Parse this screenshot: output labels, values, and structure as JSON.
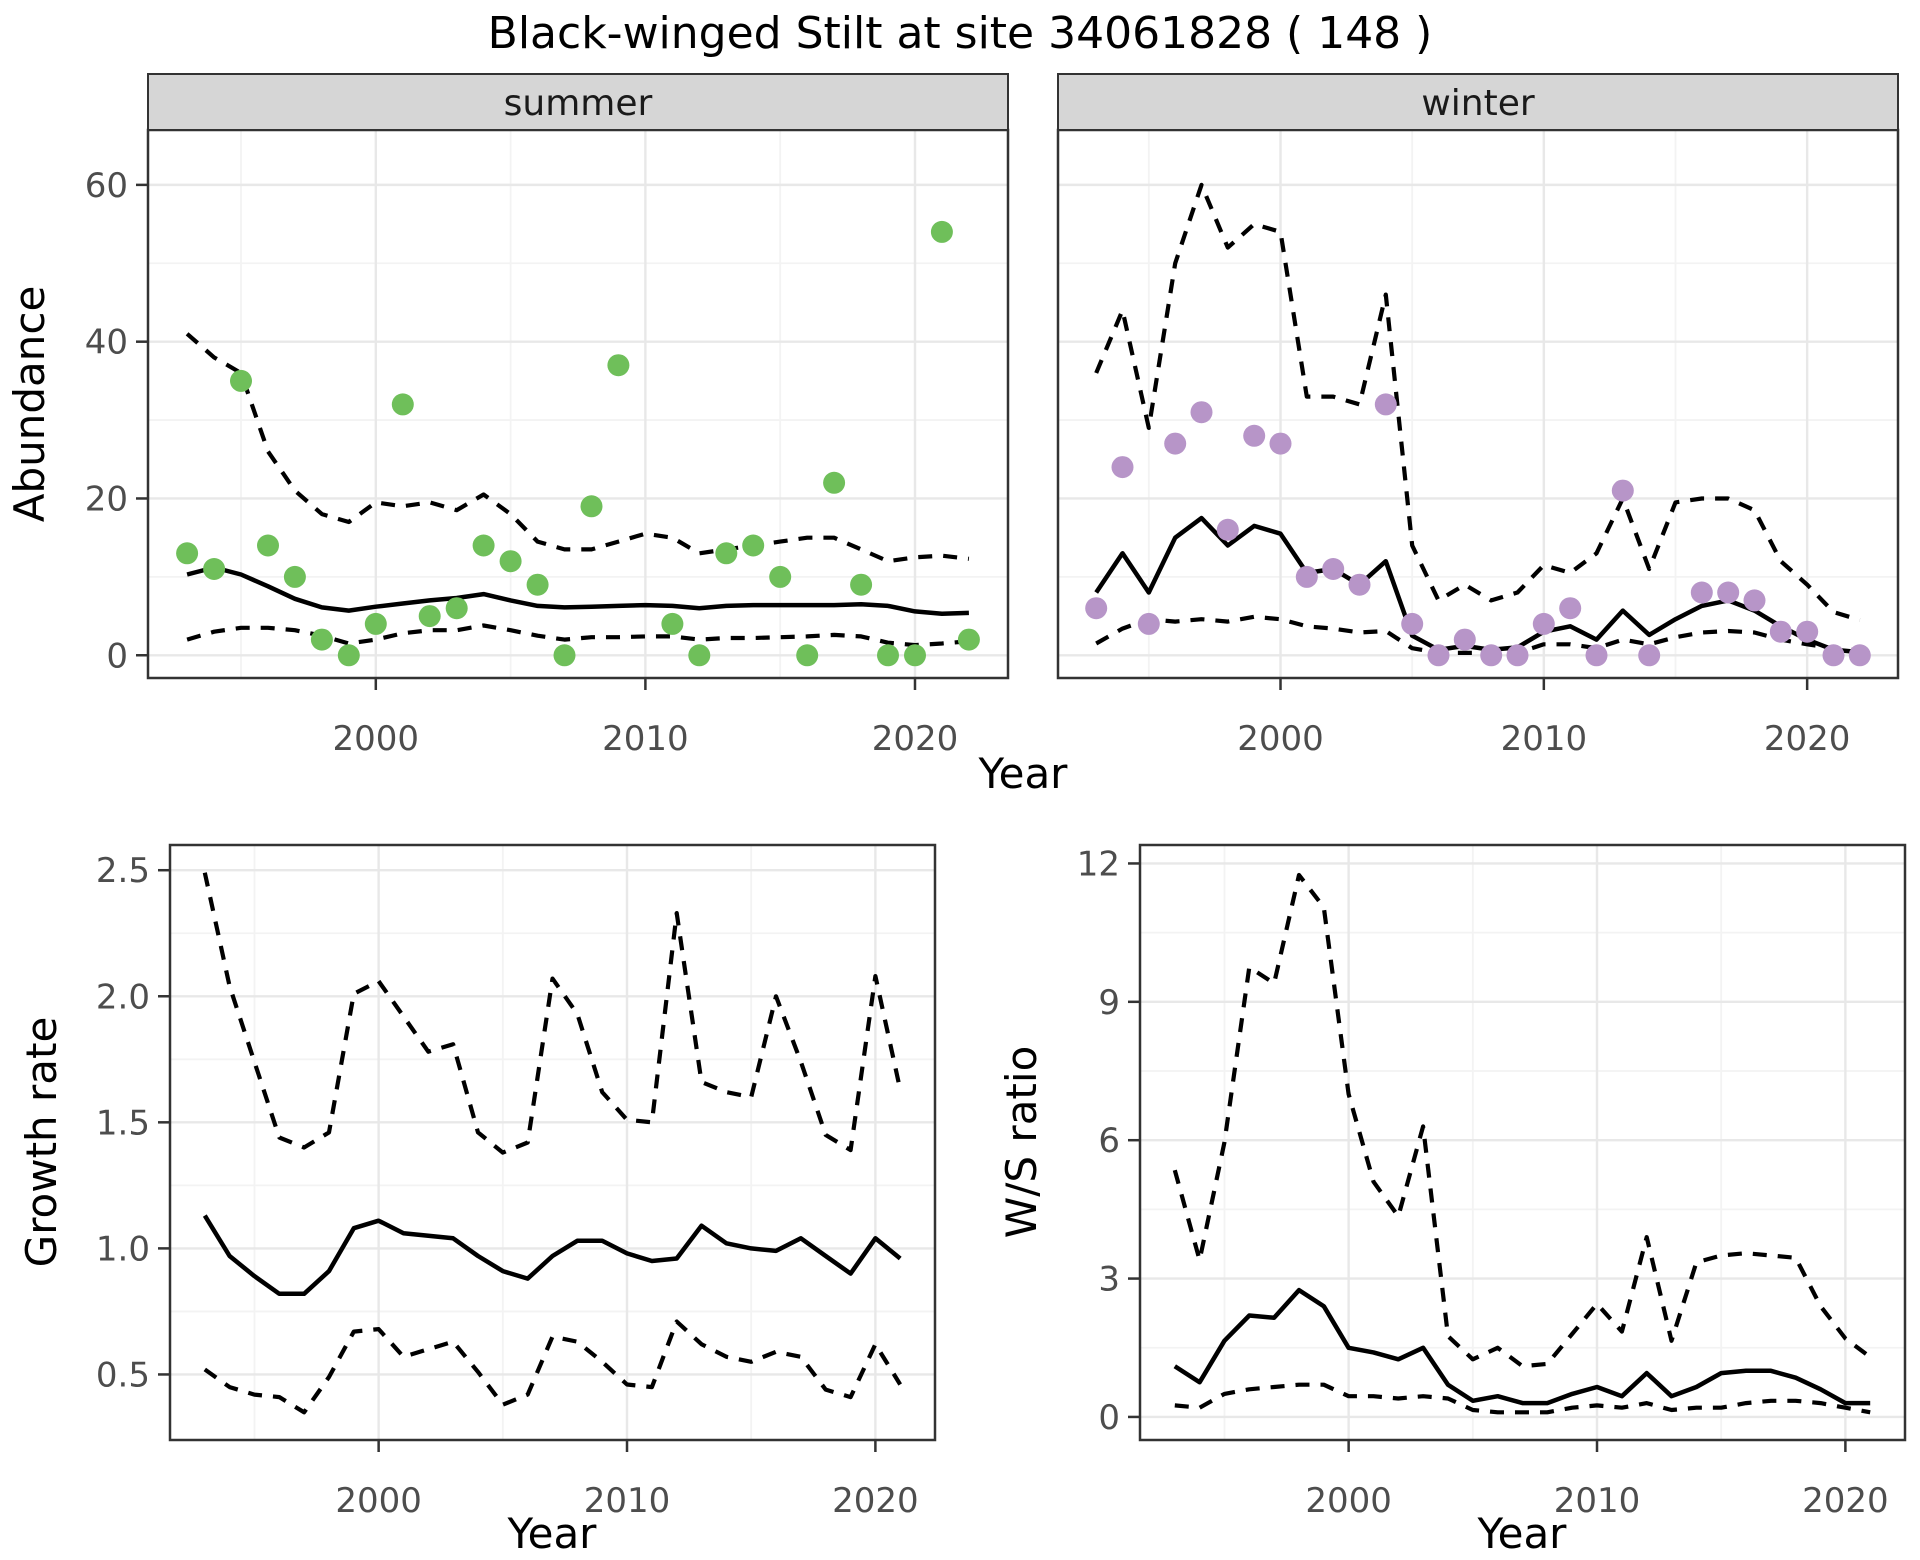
{
  "title": "Black-winged Stilt at site 34061828 ( 148 )",
  "axis_labels": {
    "x": "Year",
    "abundance": "Abundance",
    "growth": "Growth rate",
    "ws_ratio": "W/S ratio"
  },
  "facets": [
    "summer",
    "winter"
  ],
  "colors": {
    "summer_point": "#6fbf5a",
    "winter_point": "#b795c8",
    "line": "#000000",
    "grid_major": "#e8e8e8",
    "grid_minor": "#f3f3f3",
    "strip_bg": "#d6d6d6",
    "panel_border": "#333333",
    "tick_text": "#4d4d4d",
    "title_text": "#000000"
  },
  "chart_data": [
    {
      "id": "abundance_summer",
      "type": "scatter",
      "facet": "summer",
      "ylabel": "Abundance",
      "xlabel": "Year",
      "xlim": [
        1991.55,
        2023.45
      ],
      "ylim": [
        -2.9,
        67.0
      ],
      "x_ticks": [
        2000,
        2010,
        2020
      ],
      "x_tick_labels": [
        "2000",
        "2010",
        "2020"
      ],
      "x_minor": [
        1995,
        2005,
        2015
      ],
      "y_ticks": [
        0,
        20,
        40,
        60
      ],
      "y_tick_labels": [
        "0",
        "20",
        "40",
        "60"
      ],
      "y_minor": [
        10,
        30,
        50
      ],
      "point_color_key": "summer_point",
      "points": {
        "x": [
          1993,
          1994,
          1995,
          1996,
          1997,
          1998,
          1999,
          2000,
          2001,
          2002,
          2003,
          2004,
          2005,
          2006,
          2007,
          2008,
          2009,
          2011,
          2012,
          2013,
          2014,
          2015,
          2016,
          2017,
          2018,
          2019,
          2020,
          2021,
          2022
        ],
        "y": [
          13,
          11,
          35,
          14,
          10,
          2,
          0,
          4,
          32,
          5,
          6,
          14,
          12,
          9,
          0,
          19,
          37,
          4,
          0,
          13,
          14,
          10,
          0,
          22,
          9,
          0,
          0,
          54,
          2
        ]
      },
      "line_years": [
        1993,
        1994,
        1995,
        1996,
        1997,
        1998,
        1999,
        2000,
        2001,
        2002,
        2003,
        2004,
        2005,
        2006,
        2007,
        2008,
        2009,
        2010,
        2011,
        2012,
        2013,
        2014,
        2015,
        2016,
        2017,
        2018,
        2019,
        2020,
        2021,
        2022
      ],
      "fit": [
        10.3,
        11.2,
        10.3,
        8.8,
        7.2,
        6.1,
        5.7,
        6.2,
        6.6,
        7.0,
        7.3,
        7.8,
        7.0,
        6.3,
        6.1,
        6.2,
        6.3,
        6.4,
        6.3,
        6.0,
        6.3,
        6.4,
        6.4,
        6.4,
        6.4,
        6.5,
        6.3,
        5.6,
        5.3,
        5.4
      ],
      "upper": [
        41,
        38,
        36,
        26,
        21,
        18,
        17,
        19.5,
        19,
        19.5,
        18.5,
        20.5,
        18,
        14.5,
        13.5,
        13.5,
        14.5,
        15.5,
        15,
        13,
        13.5,
        14,
        14.5,
        15,
        15,
        13.5,
        12,
        12.5,
        12.7,
        12.3
      ],
      "lower": [
        2,
        3,
        3.5,
        3.5,
        3.2,
        2.5,
        1.5,
        2,
        2.8,
        3.2,
        3.2,
        3.8,
        3.2,
        2.5,
        2,
        2.3,
        2.3,
        2.4,
        2.4,
        2,
        2.2,
        2.2,
        2.3,
        2.4,
        2.6,
        2.4,
        1.6,
        1.3,
        1.5,
        1.8
      ]
    },
    {
      "id": "abundance_winter",
      "type": "scatter",
      "facet": "winter",
      "ylabel": "Abundance",
      "xlabel": "Year",
      "xlim": [
        1991.55,
        2023.45
      ],
      "ylim": [
        -2.9,
        67.0
      ],
      "x_ticks": [
        2000,
        2010,
        2020
      ],
      "x_tick_labels": [
        "2000",
        "2010",
        "2020"
      ],
      "x_minor": [
        1995,
        2005,
        2015
      ],
      "y_ticks": [
        0,
        20,
        40,
        60
      ],
      "y_tick_labels": [
        "0",
        "20",
        "40",
        "60"
      ],
      "y_minor": [
        10,
        30,
        50
      ],
      "point_color_key": "winter_point",
      "points": {
        "x": [
          1993,
          1994,
          1995,
          1996,
          1997,
          1998,
          1999,
          2000,
          2001,
          2002,
          2003,
          2004,
          2005,
          2006,
          2007,
          2008,
          2009,
          2010,
          2011,
          2012,
          2013,
          2014,
          2016,
          2017,
          2018,
          2019,
          2020,
          2021,
          2022
        ],
        "y": [
          6,
          24,
          4,
          27,
          31,
          16,
          28,
          27,
          10,
          11,
          9,
          32,
          4,
          0,
          2,
          0,
          0,
          4,
          6,
          0,
          21,
          0,
          8,
          8,
          7,
          3,
          3,
          0,
          0
        ]
      },
      "line_years": [
        1993,
        1994,
        1995,
        1996,
        1997,
        1998,
        1999,
        2000,
        2001,
        2002,
        2003,
        2004,
        2005,
        2006,
        2007,
        2008,
        2009,
        2010,
        2011,
        2012,
        2013,
        2014,
        2015,
        2016,
        2017,
        2018,
        2019,
        2020,
        2021,
        2022
      ],
      "fit": [
        8,
        13,
        8,
        15,
        17.5,
        14,
        16.5,
        15.5,
        10.5,
        11,
        9,
        12,
        2.5,
        0.7,
        1.2,
        0.7,
        1.0,
        3.0,
        3.7,
        2.0,
        5.7,
        2.6,
        4.6,
        6.3,
        7.0,
        5.7,
        3.7,
        2.0,
        0.7,
        0.4
      ],
      "upper": [
        36,
        44,
        29,
        50,
        60,
        52,
        55,
        54,
        33,
        33,
        32,
        46,
        14,
        7,
        9,
        7,
        8,
        11.5,
        10.5,
        13,
        20,
        11,
        19.5,
        20,
        20,
        18.5,
        12,
        9,
        5.5,
        4.5
      ],
      "lower": [
        1.5,
        3.4,
        4.6,
        4.3,
        4.6,
        4.3,
        4.9,
        4.6,
        3.7,
        3.4,
        2.9,
        3.1,
        0.9,
        0.3,
        0.3,
        0.3,
        0.3,
        1.4,
        1.4,
        0.9,
        2.0,
        1.4,
        2.3,
        2.9,
        3.1,
        2.9,
        2.0,
        1.4,
        0.9,
        0.6
      ]
    },
    {
      "id": "growth_rate",
      "type": "line",
      "facet": null,
      "ylabel": "Growth rate",
      "xlabel": "Year",
      "xlim": [
        1991.6,
        2022.4
      ],
      "ylim": [
        0.24,
        2.6
      ],
      "x_ticks": [
        2000,
        2010,
        2020
      ],
      "x_tick_labels": [
        "2000",
        "2010",
        "2020"
      ],
      "x_minor": [
        1995,
        2005,
        2015
      ],
      "y_ticks": [
        0.5,
        1.0,
        1.5,
        2.0,
        2.5
      ],
      "y_tick_labels": [
        "0.5",
        "1.0",
        "1.5",
        "2.0",
        "2.5"
      ],
      "y_minor": [
        0.75,
        1.25,
        1.75,
        2.25
      ],
      "points": null,
      "line_years": [
        1993,
        1994,
        1995,
        1996,
        1997,
        1998,
        1999,
        2000,
        2001,
        2002,
        2003,
        2004,
        2005,
        2006,
        2007,
        2008,
        2009,
        2010,
        2011,
        2012,
        2013,
        2014,
        2015,
        2016,
        2017,
        2018,
        2019,
        2020,
        2021
      ],
      "fit": [
        1.13,
        0.97,
        0.89,
        0.82,
        0.82,
        0.91,
        1.08,
        1.11,
        1.06,
        1.05,
        1.04,
        0.97,
        0.91,
        0.88,
        0.97,
        1.03,
        1.03,
        0.98,
        0.95,
        0.96,
        1.09,
        1.02,
        1.0,
        0.99,
        1.04,
        0.97,
        0.9,
        1.04,
        0.96
      ],
      "upper": [
        2.49,
        2.04,
        1.74,
        1.44,
        1.4,
        1.46,
        2.01,
        2.06,
        1.92,
        1.78,
        1.81,
        1.46,
        1.38,
        1.42,
        2.07,
        1.93,
        1.62,
        1.51,
        1.5,
        2.33,
        1.66,
        1.62,
        1.6,
        2.0,
        1.74,
        1.45,
        1.39,
        2.08,
        1.63
      ],
      "lower": [
        0.52,
        0.45,
        0.42,
        0.41,
        0.35,
        0.49,
        0.67,
        0.68,
        0.57,
        0.6,
        0.63,
        0.51,
        0.38,
        0.42,
        0.65,
        0.63,
        0.55,
        0.46,
        0.45,
        0.71,
        0.62,
        0.57,
        0.55,
        0.59,
        0.57,
        0.44,
        0.41,
        0.62,
        0.46
      ]
    },
    {
      "id": "ws_ratio",
      "type": "line",
      "facet": null,
      "ylabel": "W/S ratio",
      "xlabel": "Year",
      "xlim": [
        1991.6,
        2022.4
      ],
      "ylim": [
        -0.5,
        12.4
      ],
      "x_ticks": [
        2000,
        2010,
        2020
      ],
      "x_tick_labels": [
        "2000",
        "2010",
        "2020"
      ],
      "x_minor": [
        1995,
        2005,
        2015
      ],
      "y_ticks": [
        0,
        3,
        6,
        9,
        12
      ],
      "y_tick_labels": [
        "0",
        "3",
        "6",
        "9",
        "12"
      ],
      "y_minor": [
        1.5,
        4.5,
        7.5,
        10.5
      ],
      "points": null,
      "line_years": [
        1993,
        1994,
        1995,
        1996,
        1997,
        1998,
        1999,
        2000,
        2001,
        2002,
        2003,
        2004,
        2005,
        2006,
        2007,
        2008,
        2009,
        2010,
        2011,
        2012,
        2013,
        2014,
        2015,
        2016,
        2017,
        2018,
        2019,
        2020,
        2021
      ],
      "fit": [
        1.1,
        0.75,
        1.65,
        2.2,
        2.15,
        2.75,
        2.4,
        1.5,
        1.4,
        1.25,
        1.5,
        0.7,
        0.35,
        0.45,
        0.3,
        0.3,
        0.5,
        0.65,
        0.45,
        0.95,
        0.45,
        0.65,
        0.95,
        1.0,
        1.0,
        0.85,
        0.6,
        0.3,
        0.3
      ],
      "upper": [
        5.35,
        3.4,
        5.95,
        9.75,
        9.4,
        11.75,
        11.05,
        7.0,
        5.1,
        4.35,
        6.3,
        1.75,
        1.25,
        1.5,
        1.1,
        1.15,
        1.8,
        2.45,
        1.85,
        3.9,
        1.65,
        3.35,
        3.5,
        3.55,
        3.5,
        3.45,
        2.4,
        1.7,
        1.3
      ],
      "lower": [
        0.25,
        0.2,
        0.5,
        0.6,
        0.65,
        0.7,
        0.7,
        0.45,
        0.45,
        0.4,
        0.45,
        0.4,
        0.15,
        0.1,
        0.1,
        0.1,
        0.2,
        0.25,
        0.2,
        0.3,
        0.15,
        0.2,
        0.2,
        0.3,
        0.35,
        0.35,
        0.3,
        0.2,
        0.1
      ]
    }
  ]
}
